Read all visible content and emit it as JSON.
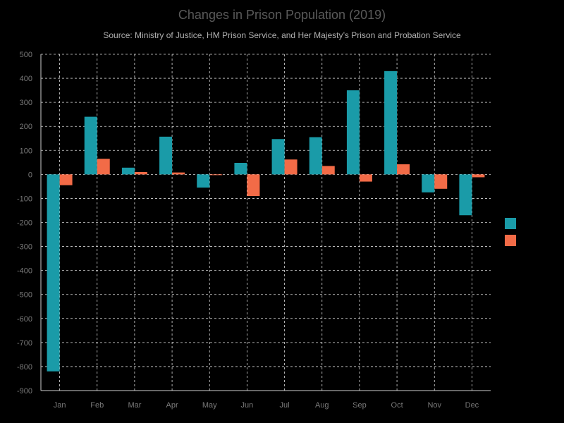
{
  "chart_data": {
    "type": "bar",
    "title": "Changes in Prison Population (2019)",
    "subtitle": "Source: Ministry of Justice, HM Prison Service, and Her Majesty’s Prison and Probation Service",
    "xlabel": "",
    "ylabel": "",
    "categories": [
      "Jan",
      "Feb",
      "Mar",
      "Apr",
      "May",
      "Jun",
      "Jul",
      "Aug",
      "Sep",
      "Oct",
      "Nov",
      "Dec"
    ],
    "series": [
      {
        "values": [
          -820,
          240,
          28,
          157,
          -55,
          48,
          147,
          155,
          350,
          430,
          -75,
          -170
        ],
        "color": "#1a9ba8"
      },
      {
        "values": [
          -45,
          65,
          10,
          8,
          -3,
          -90,
          62,
          35,
          -30,
          42,
          -60,
          -12
        ],
        "color": "#f26b47"
      }
    ],
    "ylim": [
      -900,
      500
    ],
    "yticks": [
      500,
      400,
      300,
      200,
      100,
      0,
      -100,
      -200,
      -300,
      -400,
      -500,
      -600,
      -700,
      -800,
      -900
    ],
    "grid": true,
    "legend_position": "right"
  }
}
